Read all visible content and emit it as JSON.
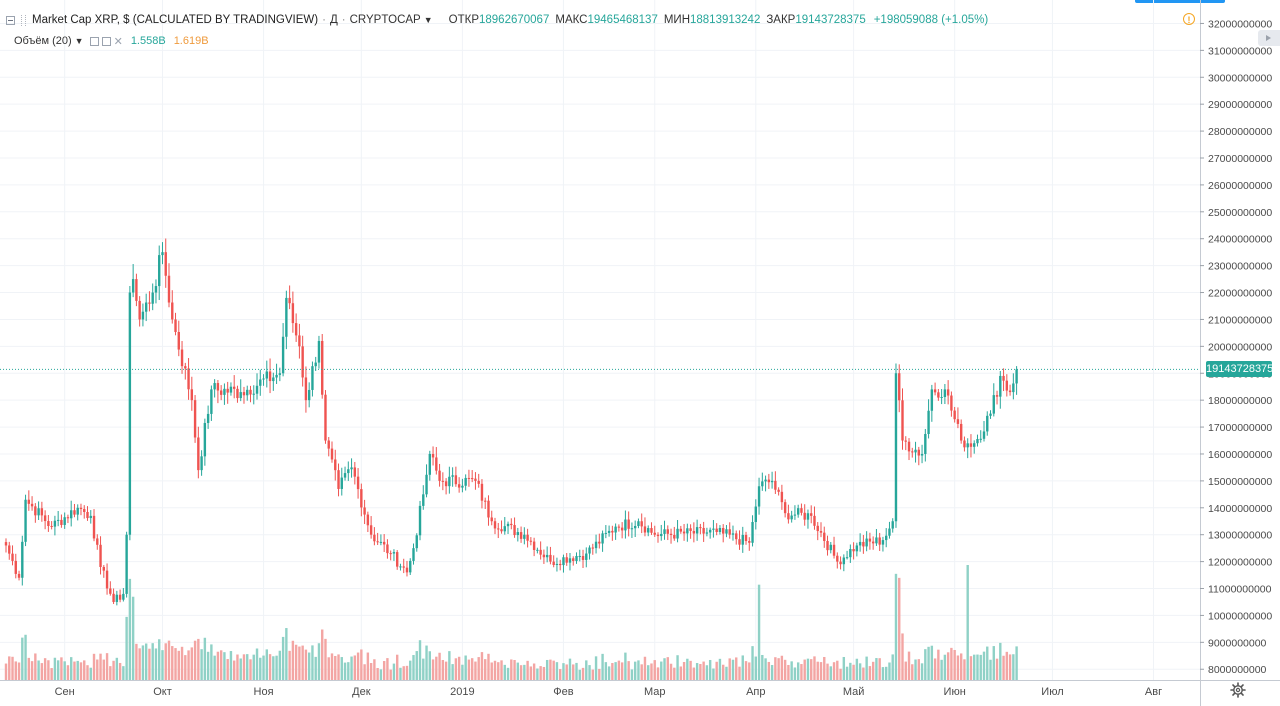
{
  "header": {
    "title": "Market Cap XRP, $ (CALCULATED BY TRADINGVIEW)",
    "separator": "·",
    "interval": "Д",
    "exchange": "CRYPTOCAP",
    "open_label": "ОТКР",
    "open": "18962670067",
    "high_label": "МАКС",
    "high": "19465468137",
    "low_label": "МИН",
    "low": "18813913242",
    "close_label": "ЗАКР",
    "close": "19143728375",
    "change": "+198059088 (+1.05%)"
  },
  "volume_legend": {
    "label": "Объём (20)",
    "value1": "1.558B",
    "value2": "1.619B"
  },
  "icons": {
    "collapse": "collapse-square-icon",
    "info": "info-circle-icon",
    "settings": "gear-icon",
    "caret": "caret-down-icon"
  },
  "price_axis": {
    "current_price_label": "19143728375",
    "ticks": [
      "32000000000",
      "31000000000",
      "30000000000",
      "29000000000",
      "28000000000",
      "27000000000",
      "26000000000",
      "25000000000",
      "24000000000",
      "23000000000",
      "22000000000",
      "21000000000",
      "20000000000",
      "19000000000",
      "18000000000",
      "17000000000",
      "16000000000",
      "15000000000",
      "14000000000",
      "13000000000",
      "12000000000",
      "11000000000",
      "10000000000",
      "9000000000",
      "8000000000"
    ]
  },
  "time_axis": {
    "labels": [
      "Сен",
      "Окт",
      "Ноя",
      "Дек",
      "2019",
      "Фев",
      "Мар",
      "Апр",
      "Май",
      "Июн",
      "Июл",
      "Авг"
    ]
  },
  "colors": {
    "up": "#26a69a",
    "down": "#ef5350",
    "vol_up": "#8fd1c6",
    "vol_down": "#f3a5a3",
    "grid": "#f0f3f7",
    "price_line": "#26a69a"
  },
  "chart_data": {
    "type": "candlestick",
    "title": "Market Cap XRP, $ (CALCULATED BY TRADINGVIEW)",
    "interval": "daily",
    "ylim": [
      7600000000,
      32500000000
    ],
    "current_price": 19143728375,
    "x_start": "2018-08-14",
    "x_end": "2019-06-20",
    "x_ticks": [
      "Сен",
      "Окт",
      "Ноя",
      "Дек",
      "2019",
      "Фев",
      "Мар",
      "Апр",
      "Май",
      "Июн",
      "Июл",
      "Авг"
    ],
    "close_anchors": [
      {
        "date": "2018-08-14",
        "close": 12600000000
      },
      {
        "date": "2018-08-18",
        "close": 11400000000
      },
      {
        "date": "2018-08-20",
        "close": 14300000000
      },
      {
        "date": "2018-08-28",
        "close": 13300000000
      },
      {
        "date": "2018-09-05",
        "close": 14000000000
      },
      {
        "date": "2018-09-09",
        "close": 13700000000
      },
      {
        "date": "2018-09-12",
        "close": 11800000000
      },
      {
        "date": "2018-09-16",
        "close": 10500000000
      },
      {
        "date": "2018-09-19",
        "close": 10800000000
      },
      {
        "date": "2018-09-20",
        "close": 13000000000
      },
      {
        "date": "2018-09-21",
        "close": 22000000000
      },
      {
        "date": "2018-09-22",
        "close": 22500000000
      },
      {
        "date": "2018-09-24",
        "close": 21000000000
      },
      {
        "date": "2018-09-28",
        "close": 22000000000
      },
      {
        "date": "2018-10-01",
        "close": 23500000000
      },
      {
        "date": "2018-10-04",
        "close": 21000000000
      },
      {
        "date": "2018-10-10",
        "close": 18000000000
      },
      {
        "date": "2018-10-12",
        "close": 15400000000
      },
      {
        "date": "2018-10-16",
        "close": 18400000000
      },
      {
        "date": "2018-10-25",
        "close": 18300000000
      },
      {
        "date": "2018-11-06",
        "close": 19000000000
      },
      {
        "date": "2018-11-08",
        "close": 21800000000
      },
      {
        "date": "2018-11-12",
        "close": 20000000000
      },
      {
        "date": "2018-11-14",
        "close": 18000000000
      },
      {
        "date": "2018-11-18",
        "close": 20200000000
      },
      {
        "date": "2018-11-20",
        "close": 16500000000
      },
      {
        "date": "2018-11-24",
        "close": 14700000000
      },
      {
        "date": "2018-11-28",
        "close": 15500000000
      },
      {
        "date": "2018-12-04",
        "close": 13000000000
      },
      {
        "date": "2018-12-10",
        "close": 12300000000
      },
      {
        "date": "2018-12-15",
        "close": 11600000000
      },
      {
        "date": "2018-12-17",
        "close": 12500000000
      },
      {
        "date": "2018-12-20",
        "close": 14500000000
      },
      {
        "date": "2018-12-22",
        "close": 16000000000
      },
      {
        "date": "2018-12-25",
        "close": 15000000000
      },
      {
        "date": "2019-01-05",
        "close": 15000000000
      },
      {
        "date": "2019-01-10",
        "close": 13500000000
      },
      {
        "date": "2019-01-20",
        "close": 13000000000
      },
      {
        "date": "2019-01-28",
        "close": 12000000000
      },
      {
        "date": "2019-02-08",
        "close": 12300000000
      },
      {
        "date": "2019-02-17",
        "close": 13300000000
      },
      {
        "date": "2019-02-24",
        "close": 13500000000
      },
      {
        "date": "2019-03-01",
        "close": 13000000000
      },
      {
        "date": "2019-03-20",
        "close": 13100000000
      },
      {
        "date": "2019-03-30",
        "close": 12700000000
      },
      {
        "date": "2019-04-02",
        "close": 14800000000
      },
      {
        "date": "2019-04-06",
        "close": 15000000000
      },
      {
        "date": "2019-04-10",
        "close": 13800000000
      },
      {
        "date": "2019-04-18",
        "close": 13700000000
      },
      {
        "date": "2019-04-26",
        "close": 12000000000
      },
      {
        "date": "2019-05-02",
        "close": 12600000000
      },
      {
        "date": "2019-05-10",
        "close": 12800000000
      },
      {
        "date": "2019-05-13",
        "close": 13500000000
      },
      {
        "date": "2019-05-14",
        "close": 19000000000
      },
      {
        "date": "2019-05-16",
        "close": 16500000000
      },
      {
        "date": "2019-05-22",
        "close": 16000000000
      },
      {
        "date": "2019-05-25",
        "close": 18400000000
      },
      {
        "date": "2019-05-29",
        "close": 18400000000
      },
      {
        "date": "2019-06-03",
        "close": 16500000000
      },
      {
        "date": "2019-06-07",
        "close": 16400000000
      },
      {
        "date": "2019-06-12",
        "close": 17500000000
      },
      {
        "date": "2019-06-15",
        "close": 18900000000
      },
      {
        "date": "2019-06-18",
        "close": 18300000000
      },
      {
        "date": "2019-06-20",
        "close": 19143728375
      }
    ],
    "volume_spikes": [
      {
        "date": "2018-09-21",
        "volume": "high"
      },
      {
        "date": "2018-09-22",
        "volume": "high"
      },
      {
        "date": "2019-04-02",
        "volume": "high"
      },
      {
        "date": "2019-05-14",
        "volume": "high"
      },
      {
        "date": "2019-05-15",
        "volume": "high"
      },
      {
        "date": "2019-06-05",
        "volume": "high"
      }
    ]
  }
}
